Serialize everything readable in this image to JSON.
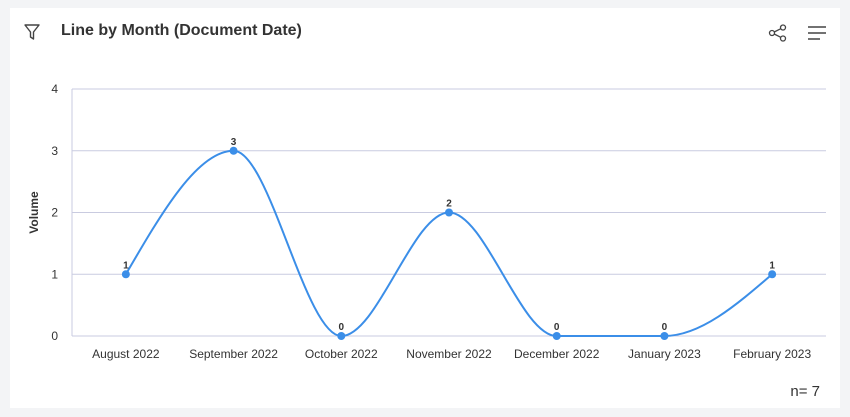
{
  "header": {
    "title": "Line by Month (Document Date)",
    "filter_icon": "filter-icon",
    "share_icon": "share-icon",
    "menu_icon": "menu-icon"
  },
  "footer": {
    "n_label": "n= 7"
  },
  "colors": {
    "line": "#3b8ee8",
    "grid": "#c9cbe0",
    "text": "#333333"
  },
  "chart_data": {
    "type": "line",
    "title": "Line by Month (Document Date)",
    "xlabel": "",
    "ylabel": "Volume",
    "categories": [
      "August 2022",
      "September 2022",
      "October 2022",
      "November 2022",
      "December 2022",
      "January 2023",
      "February 2023"
    ],
    "values": [
      1,
      3,
      0,
      2,
      0,
      0,
      1
    ],
    "data_labels": [
      "1",
      "3",
      "0",
      "2",
      "0",
      "0",
      "1"
    ],
    "ylim": [
      0,
      4
    ],
    "yticks": [
      "0",
      "1",
      "2",
      "3",
      "4"
    ],
    "grid": true,
    "smooth": true
  }
}
